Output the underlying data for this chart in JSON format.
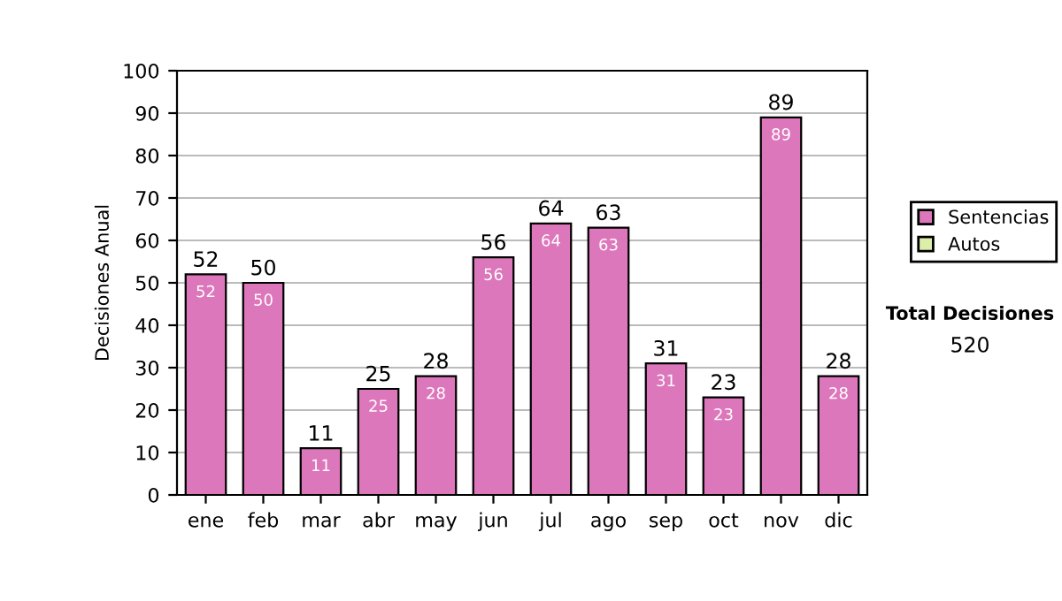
{
  "chart_data": {
    "type": "bar",
    "stacked": true,
    "ylabel": "Decisiones Anual",
    "categories": [
      "ene",
      "feb",
      "mar",
      "abr",
      "may",
      "jun",
      "jul",
      "ago",
      "sep",
      "oct",
      "nov",
      "dic"
    ],
    "series": [
      {
        "name": "Sentencias",
        "color": "#dd77bb",
        "values": [
          52,
          50,
          11,
          25,
          28,
          56,
          64,
          63,
          31,
          23,
          89,
          28
        ],
        "value_labels": [
          "52",
          "50",
          "11",
          "25",
          "28",
          "56",
          "64",
          "63",
          "31",
          "23",
          "89",
          "28"
        ]
      },
      {
        "name": "Autos",
        "color": "#ddeeaa",
        "values": [
          0,
          0,
          0,
          0,
          0,
          0,
          0,
          0,
          0,
          0,
          0,
          0
        ]
      }
    ],
    "totals": [
      "52",
      "50",
      "11",
      "25",
      "28",
      "56",
      "64",
      "63",
      "31",
      "23",
      "89",
      "28"
    ],
    "ylim": [
      0,
      100
    ],
    "yticks": [
      0,
      10,
      20,
      30,
      40,
      50,
      60,
      70,
      80,
      90,
      100
    ],
    "grid": "y",
    "legend": "right",
    "annotations": [
      "Total Decisiones",
      "520"
    ]
  }
}
